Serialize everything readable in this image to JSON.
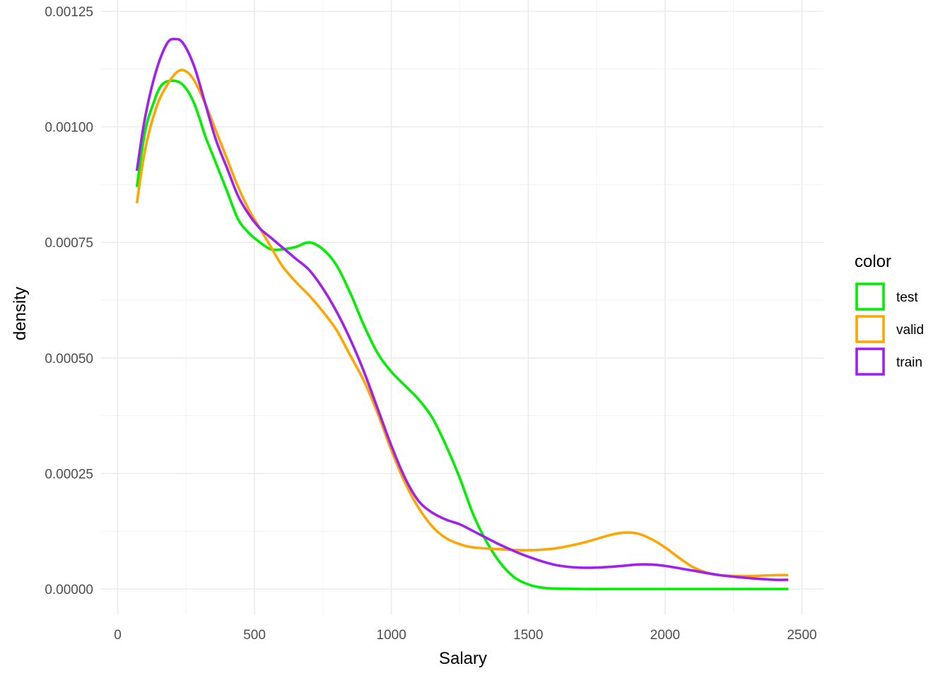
{
  "chart_data": {
    "type": "line",
    "xlabel": "Salary",
    "ylabel": "density",
    "xlim": [
      0,
      2500
    ],
    "ylim": [
      0,
      0.00125
    ],
    "x_ticks": [
      0,
      500,
      1000,
      1500,
      2000,
      2500
    ],
    "x_tick_labels": [
      "0",
      "500",
      "1000",
      "1500",
      "2000",
      "2500"
    ],
    "y_ticks": [
      0,
      0.00025,
      0.0005,
      0.00075,
      0.001,
      0.00125
    ],
    "y_tick_labels": [
      "0.00000",
      "0.00025",
      "0.00050",
      "0.00075",
      "0.00100",
      "0.00125"
    ],
    "grid": true,
    "legend": {
      "title": "color",
      "position": "right"
    },
    "series": [
      {
        "name": "test",
        "color": "#00ee00",
        "points": [
          [
            70,
            0.00087
          ],
          [
            100,
            0.00099
          ],
          [
            130,
            0.00105
          ],
          [
            160,
            0.00109
          ],
          [
            200,
            0.0011
          ],
          [
            240,
            0.00109
          ],
          [
            280,
            0.00105
          ],
          [
            320,
            0.00098
          ],
          [
            360,
            0.00092
          ],
          [
            400,
            0.00086
          ],
          [
            440,
            0.0008
          ],
          [
            480,
            0.00077
          ],
          [
            520,
            0.00075
          ],
          [
            560,
            0.000735
          ],
          [
            600,
            0.000735
          ],
          [
            650,
            0.00074
          ],
          [
            700,
            0.00075
          ],
          [
            750,
            0.000735
          ],
          [
            800,
            0.0007
          ],
          [
            850,
            0.00064
          ],
          [
            900,
            0.00057
          ],
          [
            950,
            0.00051
          ],
          [
            1000,
            0.00047
          ],
          [
            1050,
            0.00044
          ],
          [
            1100,
            0.00041
          ],
          [
            1150,
            0.00037
          ],
          [
            1200,
            0.00031
          ],
          [
            1250,
            0.00024
          ],
          [
            1300,
            0.00016
          ],
          [
            1350,
            0.0001
          ],
          [
            1400,
            5.5e-05
          ],
          [
            1450,
            2.5e-05
          ],
          [
            1500,
            1e-05
          ],
          [
            1550,
            3e-06
          ],
          [
            1600,
            1e-06
          ],
          [
            1700,
            0.0
          ],
          [
            1800,
            0.0
          ],
          [
            2000,
            0.0
          ],
          [
            2200,
            0.0
          ],
          [
            2450,
            0.0
          ]
        ]
      },
      {
        "name": "valid",
        "color": "#ffa500",
        "points": [
          [
            70,
            0.000835
          ],
          [
            100,
            0.00095
          ],
          [
            140,
            0.00104
          ],
          [
            180,
            0.00109
          ],
          [
            220,
            0.00112
          ],
          [
            250,
            0.00112
          ],
          [
            280,
            0.0011
          ],
          [
            320,
            0.00105
          ],
          [
            360,
            0.00099
          ],
          [
            400,
            0.00093
          ],
          [
            440,
            0.00087
          ],
          [
            480,
            0.00082
          ],
          [
            520,
            0.00078
          ],
          [
            560,
            0.00074
          ],
          [
            600,
            0.0007
          ],
          [
            650,
            0.000665
          ],
          [
            700,
            0.000635
          ],
          [
            750,
            0.0006
          ],
          [
            800,
            0.00056
          ],
          [
            850,
            0.000505
          ],
          [
            900,
            0.00045
          ],
          [
            950,
            0.00038
          ],
          [
            1000,
            0.0003
          ],
          [
            1050,
            0.00023
          ],
          [
            1100,
            0.000175
          ],
          [
            1150,
            0.000135
          ],
          [
            1200,
            0.00011
          ],
          [
            1250,
            9.7e-05
          ],
          [
            1300,
            9e-05
          ],
          [
            1400,
            8.6e-05
          ],
          [
            1500,
            8.4e-05
          ],
          [
            1600,
            8.8e-05
          ],
          [
            1700,
            0.0001
          ],
          [
            1800,
            0.000117
          ],
          [
            1850,
            0.000122
          ],
          [
            1900,
            0.00012
          ],
          [
            1950,
            0.000108
          ],
          [
            2000,
            9e-05
          ],
          [
            2050,
            6.8e-05
          ],
          [
            2100,
            4.8e-05
          ],
          [
            2150,
            3.6e-05
          ],
          [
            2200,
            3e-05
          ],
          [
            2300,
            2.8e-05
          ],
          [
            2400,
            3e-05
          ],
          [
            2450,
            3e-05
          ]
        ]
      },
      {
        "name": "train",
        "color": "#a020f0",
        "points": [
          [
            70,
            0.000905
          ],
          [
            100,
            0.00102
          ],
          [
            140,
            0.00112
          ],
          [
            180,
            0.00118
          ],
          [
            210,
            0.00119
          ],
          [
            240,
            0.00118
          ],
          [
            280,
            0.00113
          ],
          [
            320,
            0.00105
          ],
          [
            360,
            0.00097
          ],
          [
            400,
            0.00091
          ],
          [
            440,
            0.00085
          ],
          [
            480,
            0.00081
          ],
          [
            520,
            0.00078
          ],
          [
            560,
            0.00076
          ],
          [
            600,
            0.00074
          ],
          [
            650,
            0.000715
          ],
          [
            700,
            0.00069
          ],
          [
            750,
            0.00065
          ],
          [
            800,
            0.0006
          ],
          [
            850,
            0.00054
          ],
          [
            900,
            0.00047
          ],
          [
            950,
            0.00039
          ],
          [
            1000,
            0.00031
          ],
          [
            1050,
            0.00024
          ],
          [
            1100,
            0.00019
          ],
          [
            1150,
            0.000165
          ],
          [
            1200,
            0.00015
          ],
          [
            1250,
            0.00014
          ],
          [
            1300,
            0.000125
          ],
          [
            1400,
            9.5e-05
          ],
          [
            1500,
            7e-05
          ],
          [
            1600,
            5.2e-05
          ],
          [
            1700,
            4.6e-05
          ],
          [
            1800,
            4.8e-05
          ],
          [
            1900,
            5.3e-05
          ],
          [
            1950,
            5.3e-05
          ],
          [
            2000,
            5e-05
          ],
          [
            2100,
            4e-05
          ],
          [
            2200,
            3e-05
          ],
          [
            2300,
            2.4e-05
          ],
          [
            2400,
            2e-05
          ],
          [
            2450,
            2e-05
          ]
        ]
      }
    ]
  }
}
